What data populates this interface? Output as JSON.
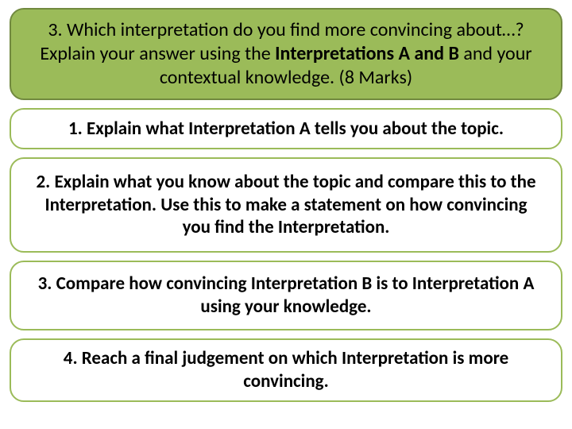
{
  "colors": {
    "header_bg": "#9bbb59",
    "header_border": "#71893f",
    "step_bg": "#ffffff",
    "step_border": "#9bbb59",
    "text": "#000000"
  },
  "typography": {
    "font_family": "Calibri, Arial, sans-serif",
    "header_fontsize": 24,
    "step_fontsize": 23,
    "step_weight": "bold"
  },
  "header": {
    "prefix": "3. Which interpretation do you find more convincing about…? Explain your answer using the ",
    "bold1": "Interpretations A and B",
    "suffix": " and your contextual knowledge. (8 Marks)"
  },
  "steps": [
    "1. Explain what Interpretation A tells you about the topic.",
    "2. Explain what you know about the topic and compare this to the Interpretation. Use this to make a statement on how convincing you find the Interpretation.",
    "3. Compare how convincing Interpretation B is to Interpretation A using your knowledge.",
    "4. Reach a final judgement on which Interpretation is more convincing."
  ]
}
